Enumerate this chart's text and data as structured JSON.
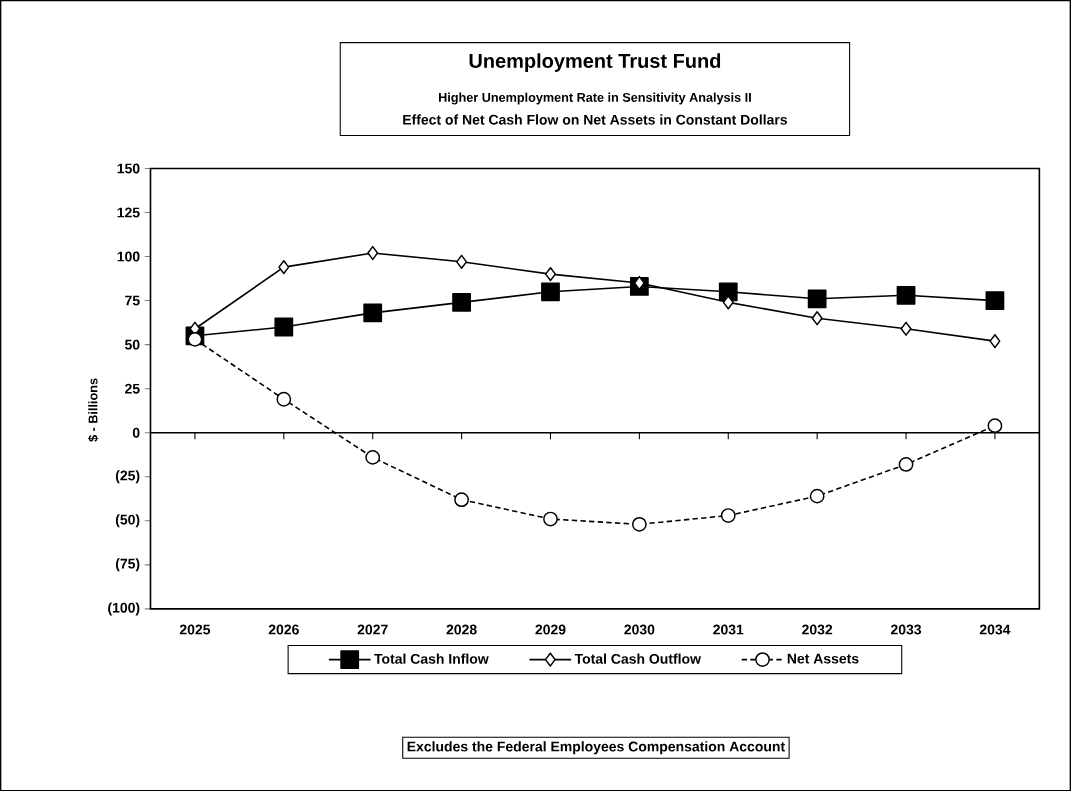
{
  "chart_data": {
    "type": "line",
    "title": "Unemployment Trust Fund",
    "subtitle": "Higher Unemployment Rate in Sensitivity Analysis II",
    "annotations": [
      "Effect of Net Cash Flow on Net Assets in Constant Dollars",
      "Excludes the Federal Employees Compensation Account"
    ],
    "ylabel": "$ - Billions",
    "categories": [
      "2025",
      "2026",
      "2027",
      "2028",
      "2029",
      "2030",
      "2031",
      "2032",
      "2033",
      "2034"
    ],
    "series": [
      {
        "name": "Total Cash Inflow",
        "color": "#000000",
        "marker": "square",
        "line_style": "solid",
        "values": [
          55,
          60,
          68,
          74,
          80,
          83,
          80,
          76,
          78,
          75
        ]
      },
      {
        "name": "Total Cash Outflow",
        "color": "#000000",
        "marker": "diamond",
        "line_style": "solid",
        "values": [
          59,
          94,
          102,
          97,
          90,
          85,
          74,
          65,
          59,
          52
        ]
      },
      {
        "name": "Net Assets",
        "color": "#000000",
        "marker": "circle",
        "line_style": "dashed",
        "values": [
          53,
          19,
          -14,
          -38,
          -49,
          -52,
          -47,
          -36,
          -18,
          4
        ]
      }
    ],
    "ylim": [
      -100,
      150
    ],
    "yticks": [
      {
        "value": -100,
        "label": "(100)"
      },
      {
        "value": -75,
        "label": "(75)"
      },
      {
        "value": -50,
        "label": "(50)"
      },
      {
        "value": -25,
        "label": "(25)"
      },
      0,
      25,
      50,
      75,
      100,
      125,
      150
    ],
    "ref_lines": [
      {
        "axis": "y",
        "value": 0
      }
    ],
    "grid": false,
    "legend": "bottom"
  }
}
